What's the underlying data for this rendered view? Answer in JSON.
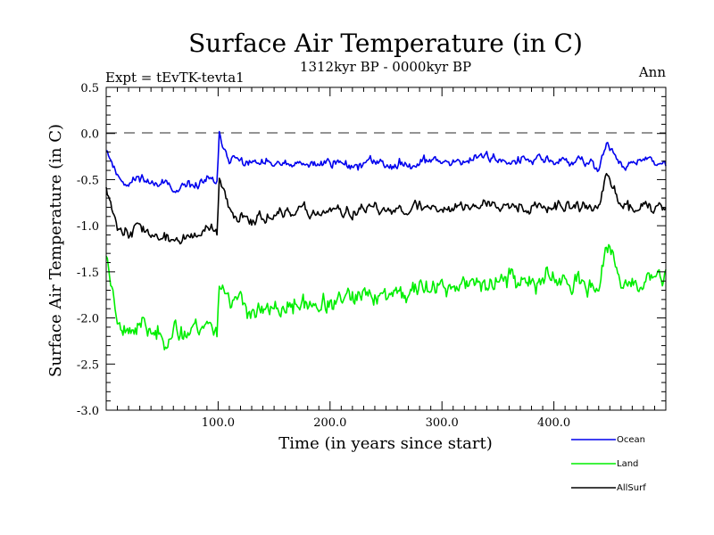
{
  "chart_data": {
    "type": "line",
    "title": "Surface Air Temperature (in C)",
    "subtitle": "1312kyr BP - 0000kyr BP",
    "top_left_label": "Expt = tEvTK-tevta1",
    "top_right_label": "Ann",
    "xlabel": "Time (in years since start)",
    "ylabel": "Surface Air Temperature (in C)",
    "xlim": [
      0,
      500
    ],
    "ylim": [
      -3.0,
      0.5
    ],
    "x_ticks": [
      100,
      200,
      300,
      400
    ],
    "x_tick_labels": [
      "100.0",
      "200.0",
      "300.0",
      "400.0"
    ],
    "y_ticks": [
      -3.0,
      -2.5,
      -2.0,
      -1.5,
      -1.0,
      -0.5,
      0.0,
      0.5
    ],
    "y_tick_labels": [
      "-3.0",
      "-2.5",
      "-2.0",
      "-1.5",
      "-1.0",
      "-0.5",
      "0.0",
      "0.5"
    ],
    "reference_line": 0.0,
    "legend_position": "bottom-right outside",
    "series": [
      {
        "name": "Ocean",
        "color": "#0000ee",
        "anchors": [
          [
            0,
            -0.15
          ],
          [
            10,
            -0.45
          ],
          [
            20,
            -0.55
          ],
          [
            30,
            -0.45
          ],
          [
            40,
            -0.55
          ],
          [
            50,
            -0.5
          ],
          [
            60,
            -0.65
          ],
          [
            70,
            -0.6
          ],
          [
            80,
            -0.55
          ],
          [
            90,
            -0.5
          ],
          [
            99,
            -0.55
          ],
          [
            101,
            -0.05
          ],
          [
            110,
            -0.25
          ],
          [
            120,
            -0.3
          ],
          [
            140,
            -0.35
          ],
          [
            160,
            -0.35
          ],
          [
            180,
            -0.35
          ],
          [
            200,
            -0.3
          ],
          [
            220,
            -0.35
          ],
          [
            240,
            -0.3
          ],
          [
            260,
            -0.35
          ],
          [
            280,
            -0.3
          ],
          [
            300,
            -0.3
          ],
          [
            320,
            -0.3
          ],
          [
            340,
            -0.25
          ],
          [
            360,
            -0.3
          ],
          [
            380,
            -0.3
          ],
          [
            400,
            -0.3
          ],
          [
            420,
            -0.3
          ],
          [
            440,
            -0.35
          ],
          [
            447,
            -0.1
          ],
          [
            460,
            -0.35
          ],
          [
            480,
            -0.3
          ],
          [
            500,
            -0.35
          ]
        ],
        "noise": 0.1,
        "seed": 11
      },
      {
        "name": "Land",
        "color": "#00ee00",
        "anchors": [
          [
            0,
            -1.3
          ],
          [
            10,
            -2.0
          ],
          [
            20,
            -2.15
          ],
          [
            30,
            -2.1
          ],
          [
            40,
            -2.15
          ],
          [
            50,
            -2.2
          ],
          [
            60,
            -2.15
          ],
          [
            70,
            -2.15
          ],
          [
            80,
            -2.1
          ],
          [
            90,
            -2.05
          ],
          [
            99,
            -2.15
          ],
          [
            101,
            -1.6
          ],
          [
            110,
            -1.75
          ],
          [
            120,
            -1.85
          ],
          [
            140,
            -1.95
          ],
          [
            160,
            -1.9
          ],
          [
            180,
            -1.85
          ],
          [
            200,
            -1.85
          ],
          [
            220,
            -1.8
          ],
          [
            240,
            -1.75
          ],
          [
            260,
            -1.75
          ],
          [
            280,
            -1.7
          ],
          [
            300,
            -1.65
          ],
          [
            320,
            -1.65
          ],
          [
            340,
            -1.6
          ],
          [
            360,
            -1.55
          ],
          [
            380,
            -1.6
          ],
          [
            400,
            -1.6
          ],
          [
            420,
            -1.65
          ],
          [
            440,
            -1.65
          ],
          [
            447,
            -1.25
          ],
          [
            460,
            -1.6
          ],
          [
            480,
            -1.6
          ],
          [
            500,
            -1.55
          ]
        ],
        "noise": 0.2,
        "seed": 23
      },
      {
        "name": "AllSurf",
        "color": "#000000",
        "anchors": [
          [
            0,
            -0.55
          ],
          [
            10,
            -1.0
          ],
          [
            20,
            -1.1
          ],
          [
            30,
            -1.0
          ],
          [
            40,
            -1.1
          ],
          [
            50,
            -1.15
          ],
          [
            60,
            -1.15
          ],
          [
            70,
            -1.15
          ],
          [
            80,
            -1.1
          ],
          [
            90,
            -1.05
          ],
          [
            99,
            -1.1
          ],
          [
            101,
            -0.5
          ],
          [
            110,
            -0.85
          ],
          [
            120,
            -0.9
          ],
          [
            140,
            -0.9
          ],
          [
            160,
            -0.9
          ],
          [
            180,
            -0.85
          ],
          [
            200,
            -0.85
          ],
          [
            220,
            -0.85
          ],
          [
            240,
            -0.85
          ],
          [
            260,
            -0.8
          ],
          [
            280,
            -0.8
          ],
          [
            300,
            -0.8
          ],
          [
            320,
            -0.8
          ],
          [
            340,
            -0.75
          ],
          [
            360,
            -0.75
          ],
          [
            380,
            -0.8
          ],
          [
            400,
            -0.8
          ],
          [
            420,
            -0.8
          ],
          [
            440,
            -0.8
          ],
          [
            447,
            -0.45
          ],
          [
            460,
            -0.8
          ],
          [
            480,
            -0.8
          ],
          [
            500,
            -0.75
          ]
        ],
        "noise": 0.12,
        "seed": 37
      }
    ]
  }
}
